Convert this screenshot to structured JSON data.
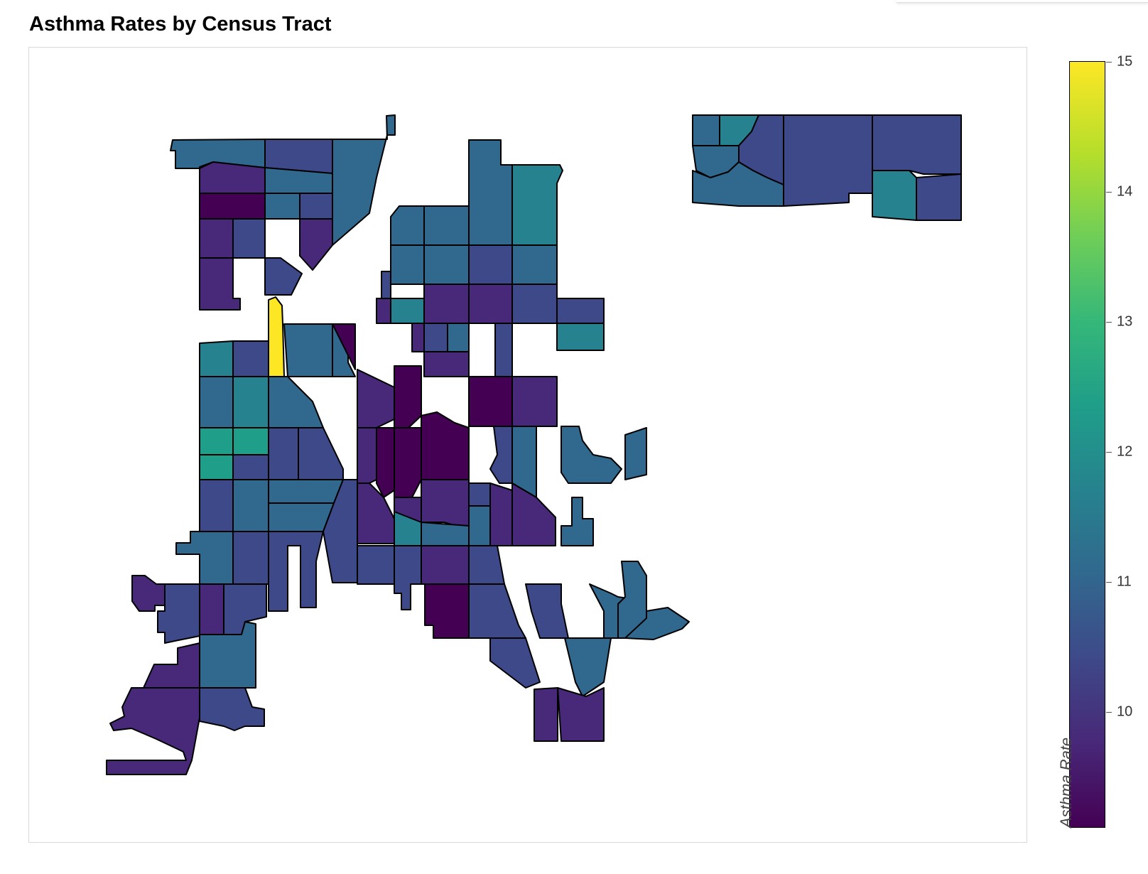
{
  "title": "Asthma Rates by Census Tract",
  "colorbar": {
    "title": "Asthma Rate",
    "min": 9.1,
    "max": 15,
    "ticks": [
      "15",
      "14",
      "13",
      "12",
      "11",
      "10"
    ],
    "colorscale": "viridis",
    "colors": [
      "#440154",
      "#482878",
      "#3e4989",
      "#31688e",
      "#26828e",
      "#1f9e89",
      "#35b779",
      "#6ece58",
      "#b5de2b",
      "#fde725"
    ]
  },
  "chart_data": {
    "type": "choropleth",
    "title": "Asthma Rates by Census Tract",
    "colorbar_title": "Asthma Rate",
    "range": [
      9.1,
      15
    ],
    "colorscale": "viridis",
    "note": "Individual census tract values are not labeled; colors range from ~9.2 (dark purple) to 15 (yellow)."
  }
}
